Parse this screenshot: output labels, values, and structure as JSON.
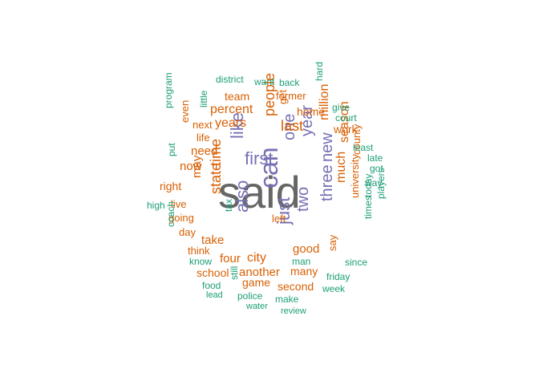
{
  "chart_data": {
    "type": "wordcloud",
    "palette": {
      "grey": "#666666",
      "purple": "#7570b3",
      "orange": "#d95f02",
      "teal": "#1b9e77"
    },
    "words": [
      {
        "text": "said",
        "color": "grey",
        "weight": 10
      },
      {
        "text": "can",
        "color": "purple",
        "weight": 6
      },
      {
        "text": "first",
        "color": "purple",
        "weight": 5
      },
      {
        "text": "like",
        "color": "purple",
        "weight": 4
      },
      {
        "text": "one",
        "color": "purple",
        "weight": 4
      },
      {
        "text": "year",
        "color": "purple",
        "weight": 4
      },
      {
        "text": "also",
        "color": "purple",
        "weight": 4
      },
      {
        "text": "just",
        "color": "purple",
        "weight": 4
      },
      {
        "text": "two",
        "color": "purple",
        "weight": 4
      },
      {
        "text": "three",
        "color": "purple",
        "weight": 4
      },
      {
        "text": "new",
        "color": "purple",
        "weight": 4
      },
      {
        "text": "people",
        "color": "orange",
        "weight": 3
      },
      {
        "text": "last",
        "color": "orange",
        "weight": 3
      },
      {
        "text": "million",
        "color": "orange",
        "weight": 3
      },
      {
        "text": "time",
        "color": "orange",
        "weight": 3
      },
      {
        "text": "state",
        "color": "orange",
        "weight": 3
      },
      {
        "text": "years",
        "color": "orange",
        "weight": 3
      },
      {
        "text": "percent",
        "color": "orange",
        "weight": 3
      },
      {
        "text": "much",
        "color": "orange",
        "weight": 3
      },
      {
        "text": "season",
        "color": "orange",
        "weight": 3
      },
      {
        "text": "city",
        "color": "orange",
        "weight": 3
      },
      {
        "text": "another",
        "color": "orange",
        "weight": 3
      },
      {
        "text": "good",
        "color": "orange",
        "weight": 3
      },
      {
        "text": "take",
        "color": "orange",
        "weight": 3
      },
      {
        "text": "four",
        "color": "orange",
        "weight": 3
      },
      {
        "text": "need",
        "color": "orange",
        "weight": 3
      },
      {
        "text": "now",
        "color": "orange",
        "weight": 3
      },
      {
        "text": "may",
        "color": "orange",
        "weight": 3
      },
      {
        "text": "home",
        "color": "orange",
        "weight": 2
      },
      {
        "text": "work",
        "color": "orange",
        "weight": 2
      },
      {
        "text": "team",
        "color": "orange",
        "weight": 2
      },
      {
        "text": "next",
        "color": "orange",
        "weight": 2
      },
      {
        "text": "life",
        "color": "orange",
        "weight": 2
      },
      {
        "text": "even",
        "color": "orange",
        "weight": 2
      },
      {
        "text": "right",
        "color": "orange",
        "weight": 2
      },
      {
        "text": "live",
        "color": "orange",
        "weight": 2
      },
      {
        "text": "going",
        "color": "orange",
        "weight": 2
      },
      {
        "text": "day",
        "color": "orange",
        "weight": 2
      },
      {
        "text": "think",
        "color": "orange",
        "weight": 2
      },
      {
        "text": "school",
        "color": "orange",
        "weight": 2
      },
      {
        "text": "game",
        "color": "orange",
        "weight": 2
      },
      {
        "text": "second",
        "color": "orange",
        "weight": 2
      },
      {
        "text": "many",
        "color": "orange",
        "weight": 2
      },
      {
        "text": "left",
        "color": "orange",
        "weight": 2
      },
      {
        "text": "say",
        "color": "orange",
        "weight": 2
      },
      {
        "text": "county",
        "color": "orange",
        "weight": 2
      },
      {
        "text": "university",
        "color": "orange",
        "weight": 2
      },
      {
        "text": "former",
        "color": "orange",
        "weight": 2
      },
      {
        "text": "get",
        "color": "orange",
        "weight": 2
      },
      {
        "text": "district",
        "color": "teal",
        "weight": 1
      },
      {
        "text": "want",
        "color": "teal",
        "weight": 1
      },
      {
        "text": "back",
        "color": "teal",
        "weight": 1
      },
      {
        "text": "hard",
        "color": "teal",
        "weight": 1
      },
      {
        "text": "give",
        "color": "teal",
        "weight": 1
      },
      {
        "text": "court",
        "color": "teal",
        "weight": 1
      },
      {
        "text": "little",
        "color": "teal",
        "weight": 1
      },
      {
        "text": "program",
        "color": "teal",
        "weight": 1
      },
      {
        "text": "put",
        "color": "teal",
        "weight": 1
      },
      {
        "text": "least",
        "color": "teal",
        "weight": 1
      },
      {
        "text": "late",
        "color": "teal",
        "weight": 1
      },
      {
        "text": "got",
        "color": "teal",
        "weight": 1
      },
      {
        "text": "way",
        "color": "teal",
        "weight": 1
      },
      {
        "text": "high",
        "color": "teal",
        "weight": 1
      },
      {
        "text": "tax",
        "color": "teal",
        "weight": 1
      },
      {
        "text": "today",
        "color": "teal",
        "weight": 1
      },
      {
        "text": "times",
        "color": "teal",
        "weight": 1
      },
      {
        "text": "players",
        "color": "teal",
        "weight": 1
      },
      {
        "text": "coach",
        "color": "teal",
        "weight": 1
      },
      {
        "text": "know",
        "color": "teal",
        "weight": 1
      },
      {
        "text": "man",
        "color": "teal",
        "weight": 1
      },
      {
        "text": "since",
        "color": "teal",
        "weight": 1
      },
      {
        "text": "friday",
        "color": "teal",
        "weight": 1
      },
      {
        "text": "food",
        "color": "teal",
        "weight": 1
      },
      {
        "text": "still",
        "color": "teal",
        "weight": 1
      },
      {
        "text": "week",
        "color": "teal",
        "weight": 1
      },
      {
        "text": "lead",
        "color": "teal",
        "weight": 1
      },
      {
        "text": "police",
        "color": "teal",
        "weight": 1
      },
      {
        "text": "make",
        "color": "teal",
        "weight": 1
      },
      {
        "text": "water",
        "color": "teal",
        "weight": 1
      },
      {
        "text": "review",
        "color": "teal",
        "weight": 1
      }
    ]
  }
}
